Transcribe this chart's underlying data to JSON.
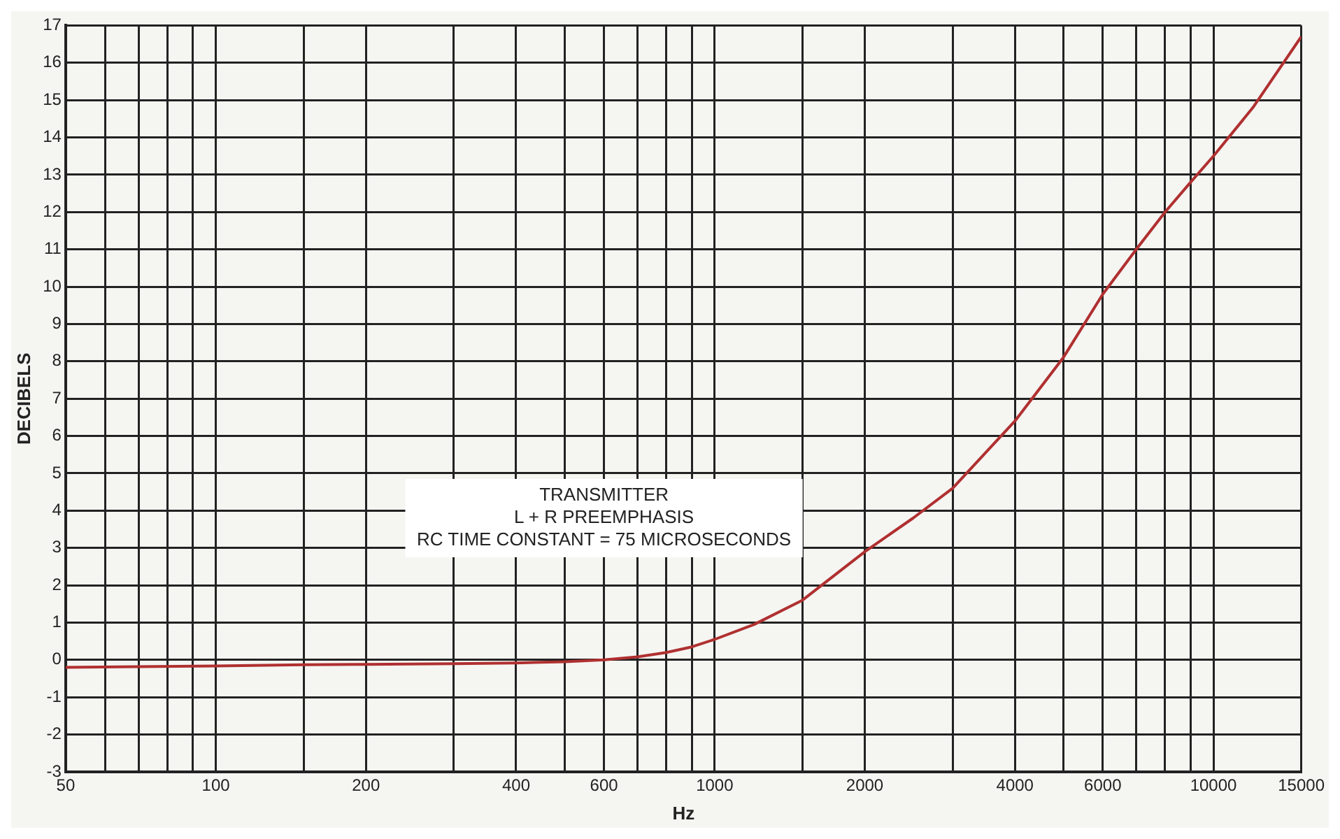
{
  "chart_data": {
    "type": "line",
    "xlabel": "Hz",
    "ylabel": "DECIBELS",
    "annotations": [
      "TRANSMITTER",
      "L + R PREEMPHASIS",
      "RC TIME CONSTANT = 75 MICROSECONDS"
    ],
    "log": "x",
    "grid": true,
    "marker": "none",
    "line_style": "solid",
    "xlim": [
      50,
      15000
    ],
    "ylim": [
      -3,
      17
    ],
    "xticks": [
      50,
      {
        "value": 60,
        "label": null
      },
      {
        "value": 70,
        "label": null
      },
      {
        "value": 80,
        "label": null
      },
      {
        "value": 90,
        "label": null
      },
      100,
      {
        "value": 150,
        "label": null
      },
      200,
      {
        "value": 300,
        "label": null
      },
      400,
      {
        "value": 500,
        "label": null
      },
      600,
      {
        "value": 700,
        "label": null
      },
      {
        "value": 800,
        "label": null
      },
      {
        "value": 900,
        "label": null
      },
      1000,
      {
        "value": 1500,
        "label": null
      },
      2000,
      {
        "value": 3000,
        "label": null
      },
      4000,
      {
        "value": 5000,
        "label": null
      },
      6000,
      {
        "value": 7000,
        "label": null
      },
      {
        "value": 8000,
        "label": null
      },
      {
        "value": 9000,
        "label": null
      },
      10000,
      15000
    ],
    "yticks": [
      -3,
      -2,
      -1,
      0,
      1,
      2,
      3,
      4,
      5,
      6,
      7,
      8,
      9,
      10,
      11,
      12,
      13,
      14,
      15,
      16,
      17
    ],
    "series": [
      {
        "color": "#b03030",
        "x": [
          50,
          70,
          100,
          150,
          200,
          300,
          400,
          500,
          600,
          700,
          800,
          900,
          1000,
          1200,
          1500,
          2000,
          2500,
          3000,
          4000,
          5000,
          6000,
          7000,
          8000,
          9000,
          10000,
          12000,
          15000
        ],
        "values": [
          -0.2,
          -0.18,
          -0.16,
          -0.13,
          -0.12,
          -0.1,
          -0.08,
          -0.05,
          0.0,
          0.08,
          0.2,
          0.35,
          0.55,
          0.95,
          1.6,
          2.9,
          3.8,
          4.6,
          6.4,
          8.1,
          9.8,
          11.0,
          12.0,
          12.8,
          13.5,
          14.8,
          16.7
        ]
      }
    ]
  }
}
